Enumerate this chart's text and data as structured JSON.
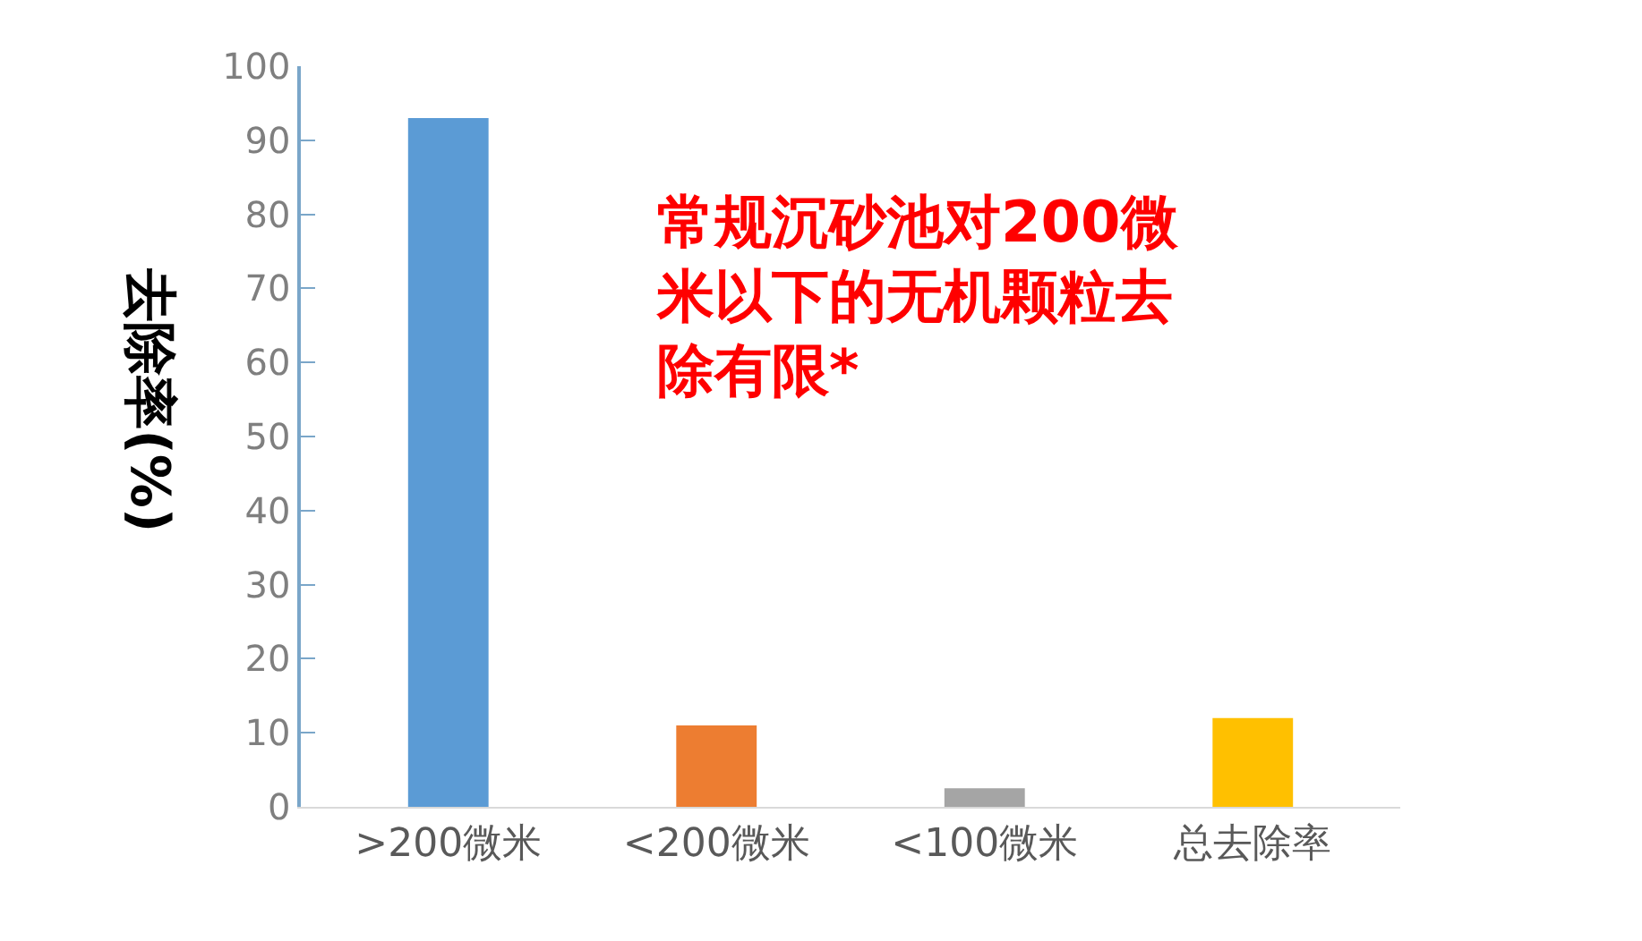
{
  "chart_data": {
    "type": "bar",
    "categories": [
      ">200微米",
      "<200微米",
      "<100微米",
      "总去除率"
    ],
    "values": [
      93,
      11,
      2.5,
      12
    ],
    "colors": [
      "#5b9bd5",
      "#ed7d31",
      "#a5a5a5",
      "#ffc000"
    ],
    "ylabel": "去除率(%)",
    "ylim": [
      0,
      100
    ],
    "yticks": [
      0,
      10,
      20,
      30,
      40,
      50,
      60,
      70,
      80,
      90,
      100
    ],
    "annotations": [
      "常规沉砂池对200微米以下的无机颗粒去除有限*"
    ]
  }
}
